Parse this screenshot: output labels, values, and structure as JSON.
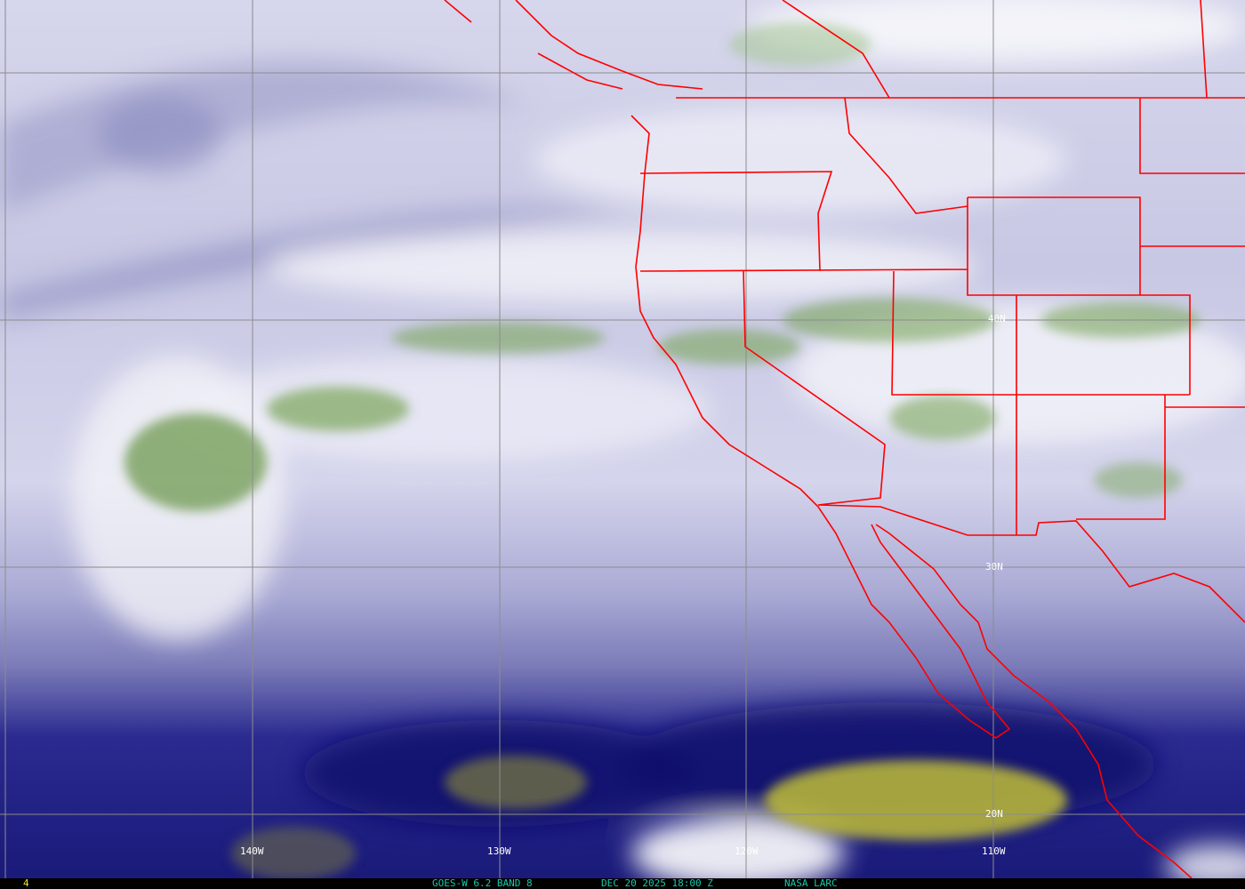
{
  "image": {
    "type": "satellite water vapor imagery",
    "colors": {
      "high_moisture": "#ffffff",
      "moist_clouds": "#6f9a4f",
      "mid": "#b8b8dc",
      "dry": "#1c1c86",
      "very_dry": "#b5b43a",
      "boundaries": "#ff0000",
      "grid": "#8c8c8c"
    }
  },
  "grid_labels": {
    "lon": [
      "140W",
      "130W",
      "120W",
      "110W"
    ],
    "lat": [
      "40N",
      "30N",
      "20N"
    ]
  },
  "status_bar": {
    "frame_number": "4",
    "satellite_band": "GOES-W 6.2 BAND 8",
    "datetime": "DEC 20 2025 18:00 Z",
    "source": "NASA LARC",
    "text_color": "#19c9a9",
    "frame_color": "#f0e030"
  }
}
